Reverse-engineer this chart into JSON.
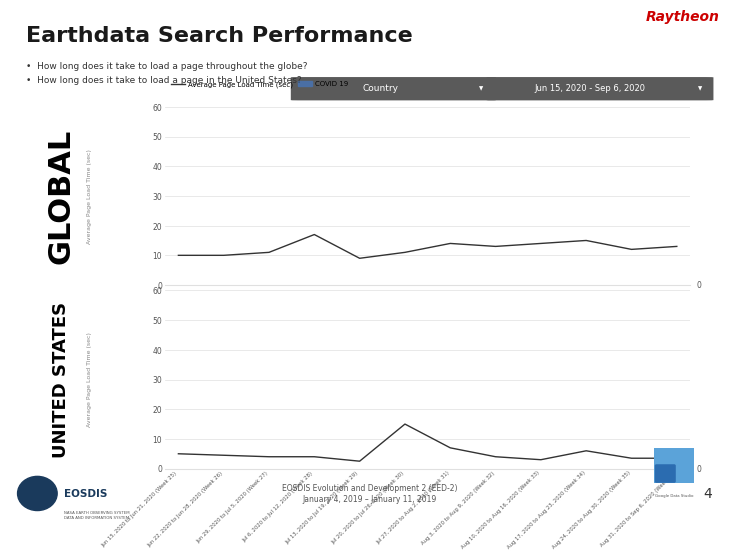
{
  "title": "Earthdata Search Performance",
  "subtitle1": "How long does it take to load a page throughout the globe?",
  "subtitle2": "How long does it take to load a page in the United States?",
  "raytheon_color": "#cc0000",
  "title_color": "#1a1a1a",
  "border_color": "#8b0000",
  "background_color": "#ffffff",
  "label_global": "GLOBAL",
  "label_us": "UNITED STATES",
  "ylabel_global": "Average Page Load Time (sec)",
  "ylabel_us": "Average Page Load Time (sec)",
  "legend_line": "Average Page Load Time (sec)",
  "legend_box": "COVID 19",
  "legend_box_color": "#4a6fa5",
  "filter_label1": "Country",
  "filter_label2": "Jun 15, 2020 - Sep 6, 2020",
  "footer_center": "EOSDIS Evolution and Development 2 (EED-2)\nJanuary 4, 2019 – January 11, 2019",
  "footer_page": "4",
  "x_labels": [
    "Jun 15, 2020 to Jun 21, 2020 (Week 25)",
    "Jun 22, 2020 to Jun 28, 2020 (Week 26)",
    "Jun 29, 2020 to Jul 5, 2020 (Week 27)",
    "Jul 6, 2020 to Jul 12, 2020 (Week 28)",
    "Jul 13, 2020 to Jul 19, 2020 (Week 29)",
    "Jul 20, 2020 to Jul 26, 2020 (Week 30)",
    "Jul 27, 2020 to Aug 2, 2020 (Week 31)",
    "Aug 3, 2020 to Aug 9, 2020 (Week 32)",
    "Aug 10, 2020 to Aug 16, 2020 (Week 33)",
    "Aug 17, 2020 to Aug 23, 2020 (Week 34)",
    "Aug 24, 2020 to Aug 30, 2020 (Week 35)",
    "Aug 31, 2020 to Sep 6, 2020 (Week 36)"
  ],
  "global_values": [
    10,
    10,
    11,
    17,
    9,
    11,
    14,
    13,
    14,
    15,
    12,
    13
  ],
  "us_values": [
    5,
    4.5,
    4,
    4,
    2.5,
    15,
    7,
    4,
    3,
    6,
    3.5,
    3.5
  ],
  "ylim_global": [
    0,
    60
  ],
  "ylim_us": [
    0,
    60
  ],
  "yticks": [
    0,
    10,
    20,
    30,
    40,
    50,
    60
  ],
  "line_color": "#333333",
  "line_width": 1.0,
  "grid_color": "#e0e0e0",
  "filter_bg": "#5a5a5a",
  "gds_color1": "#5b9bd5",
  "gds_color2": "#2e75b6"
}
